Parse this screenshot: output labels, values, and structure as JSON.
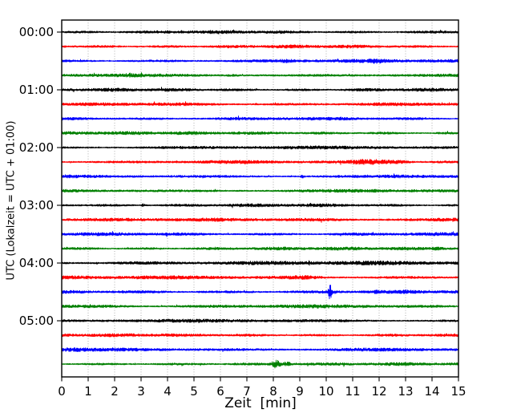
{
  "figure": {
    "background": "#ffffff",
    "axis_color": "#000000",
    "grid_color": "#999999"
  },
  "chart_data": {
    "type": "line",
    "subtype": "helicorder-dayplot",
    "title": "",
    "xlabel": "Zeit  [min]",
    "ylabel": "UTC (Lokalzeit = UTC + 01:00)",
    "xlim": [
      0,
      15
    ],
    "x_ticks": [
      0,
      1,
      2,
      3,
      4,
      5,
      6,
      7,
      8,
      9,
      10,
      11,
      12,
      13,
      14,
      15
    ],
    "y_tick_labels": [
      "00:00",
      "01:00",
      "02:00",
      "03:00",
      "04:00",
      "05:00"
    ],
    "minutes_per_trace": 15,
    "grid": "vertical-dotted",
    "legend": "none",
    "color_cycle": [
      "#000000",
      "#ff0000",
      "#0000ff",
      "#008000"
    ],
    "traces": [
      {
        "time": "00:00",
        "color": "#000000",
        "noise": 1.0,
        "events": []
      },
      {
        "time": "00:15",
        "color": "#ff0000",
        "noise": 1.0,
        "events": []
      },
      {
        "time": "00:30",
        "color": "#0000ff",
        "noise": 1.0,
        "events": [
          {
            "t": 8.5,
            "a": 0.9,
            "w": 0.2
          },
          {
            "t": 11.9,
            "a": 1.1,
            "w": 0.25
          }
        ]
      },
      {
        "time": "00:45",
        "color": "#008000",
        "noise": 1.0,
        "events": [
          {
            "t": 2.6,
            "a": 0.9,
            "w": 0.15
          },
          {
            "t": 6.5,
            "a": 0.7,
            "w": 0.2
          }
        ]
      },
      {
        "time": "01:00",
        "color": "#000000",
        "noise": 1.0,
        "events": []
      },
      {
        "time": "01:15",
        "color": "#ff0000",
        "noise": 1.0,
        "events": []
      },
      {
        "time": "01:30",
        "color": "#0000ff",
        "noise": 1.0,
        "events": []
      },
      {
        "time": "01:45",
        "color": "#008000",
        "noise": 1.0,
        "events": []
      },
      {
        "time": "02:00",
        "color": "#000000",
        "noise": 1.0,
        "events": []
      },
      {
        "time": "02:15",
        "color": "#ff0000",
        "noise": 1.0,
        "events": [
          {
            "t": 11.7,
            "a": 2.6,
            "w": 0.55
          },
          {
            "t": 12.8,
            "a": 1.2,
            "w": 0.3
          }
        ]
      },
      {
        "time": "02:30",
        "color": "#0000ff",
        "noise": 1.0,
        "events": [
          {
            "t": 9.1,
            "a": 1.4,
            "w": 0.05
          }
        ]
      },
      {
        "time": "02:45",
        "color": "#008000",
        "noise": 1.0,
        "events": [
          {
            "t": 11.8,
            "a": 1.4,
            "w": 0.06
          }
        ]
      },
      {
        "time": "03:00",
        "color": "#000000",
        "noise": 1.0,
        "events": [
          {
            "t": 3.1,
            "a": 1.6,
            "w": 0.05
          }
        ]
      },
      {
        "time": "03:15",
        "color": "#ff0000",
        "noise": 1.05,
        "events": [
          {
            "t": 14.7,
            "a": 1.6,
            "w": 0.4
          }
        ]
      },
      {
        "time": "03:30",
        "color": "#0000ff",
        "noise": 1.0,
        "events": []
      },
      {
        "time": "03:45",
        "color": "#008000",
        "noise": 1.0,
        "events": [
          {
            "t": 14.2,
            "a": 1.0,
            "w": 0.2
          }
        ]
      },
      {
        "time": "04:00",
        "color": "#000000",
        "noise": 1.25,
        "events": []
      },
      {
        "time": "04:15",
        "color": "#ff0000",
        "noise": 1.1,
        "events": [
          {
            "t": 9.2,
            "a": 1.0,
            "w": 0.4
          }
        ]
      },
      {
        "time": "04:30",
        "color": "#0000ff",
        "noise": 1.1,
        "events": [
          {
            "t": 10.15,
            "a": 9.0,
            "w": 0.045
          },
          {
            "t": 11.9,
            "a": 2.0,
            "w": 0.05
          },
          {
            "t": 13.0,
            "a": 1.2,
            "w": 0.05
          }
        ]
      },
      {
        "time": "04:45",
        "color": "#008000",
        "noise": 1.1,
        "events": []
      },
      {
        "time": "05:00",
        "color": "#000000",
        "noise": 1.0,
        "events": []
      },
      {
        "time": "05:15",
        "color": "#ff0000",
        "noise": 1.0,
        "events": []
      },
      {
        "time": "05:30",
        "color": "#0000ff",
        "noise": 1.05,
        "events": [
          {
            "t": 0.4,
            "a": 0.9,
            "w": 0.3
          }
        ]
      },
      {
        "time": "05:45",
        "color": "#008000",
        "noise": 1.0,
        "events": [
          {
            "t": 8.1,
            "a": 4.8,
            "w": 0.1
          },
          {
            "t": 8.5,
            "a": 1.8,
            "w": 0.15
          }
        ]
      }
    ]
  }
}
